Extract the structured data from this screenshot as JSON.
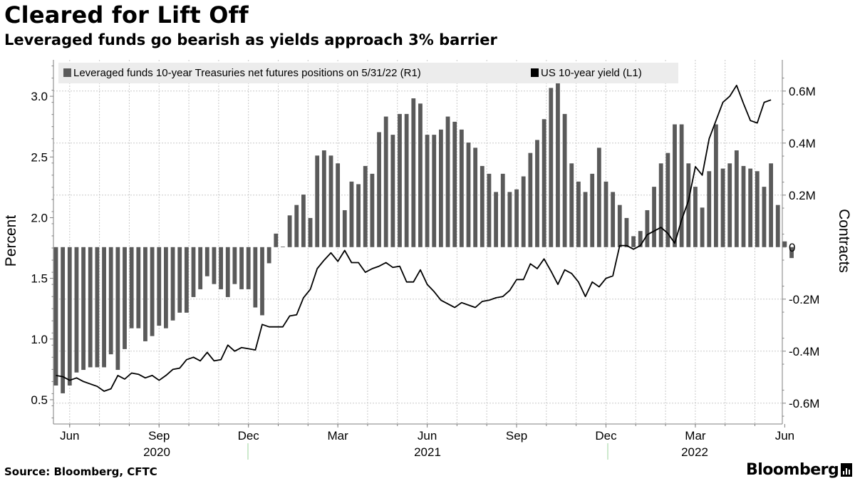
{
  "title": "Cleared for Lift Off",
  "subtitle": "Leveraged funds go bearish as yields approach 3% barrier",
  "source": "Source: Bloomberg, CFTC",
  "brand": "Bloomberg",
  "colors": {
    "bars": "#5a5a5a",
    "line": "#000000",
    "legend_bg": "#ececec",
    "grid": "#c8c8c8",
    "axis": "#7f7f7f"
  },
  "chart_data": {
    "type": "bar",
    "combo": "bars (right axis) + line (left axis)",
    "legend_position": "top-left",
    "grid": true,
    "x_tick_labels": [
      "Jun",
      "Sep",
      "Dec",
      "Mar",
      "Jun",
      "Sep",
      "Dec",
      "Mar",
      "Jun"
    ],
    "x_year_labels": [
      "2020",
      "2021",
      "2022"
    ],
    "left_axis": {
      "label": "Percent",
      "range": [
        0.3,
        3.3
      ],
      "ticks": [
        "0.5",
        "1.0",
        "1.5",
        "2.0",
        "2.5",
        "3.0"
      ]
    },
    "right_axis": {
      "label": "Contracts",
      "range": [
        -0.68,
        0.72
      ],
      "unit": "M",
      "ticks": [
        "-0.6M",
        "-0.4M",
        "-0.2M",
        "0",
        "0.2M",
        "0.4M",
        "0.6M"
      ]
    },
    "start_date": "2020-05-19",
    "interval_days": 7,
    "series": [
      {
        "name": "Leveraged funds 10-year Treasuries net futures positions on 5/31/22 (R1)",
        "type": "bar",
        "axis": "right",
        "values": [
          -0.532,
          -0.562,
          -0.532,
          -0.482,
          -0.472,
          -0.462,
          -0.462,
          -0.462,
          -0.412,
          -0.472,
          -0.392,
          -0.312,
          -0.312,
          -0.362,
          -0.342,
          -0.302,
          -0.312,
          -0.282,
          -0.252,
          -0.252,
          -0.192,
          -0.162,
          -0.112,
          -0.142,
          -0.162,
          -0.192,
          -0.142,
          -0.162,
          -0.162,
          -0.232,
          -0.262,
          -0.062,
          0.052,
          0.002,
          0.122,
          0.162,
          0.202,
          0.112,
          0.352,
          0.372,
          0.352,
          0.322,
          0.142,
          0.252,
          0.242,
          0.312,
          0.282,
          0.442,
          0.502,
          0.432,
          0.512,
          0.512,
          0.572,
          0.552,
          0.432,
          0.432,
          0.452,
          0.502,
          0.482,
          0.452,
          0.402,
          0.382,
          0.312,
          0.282,
          0.212,
          0.282,
          0.212,
          0.222,
          0.272,
          0.362,
          0.412,
          0.492,
          0.612,
          0.672,
          0.512,
          0.322,
          0.252,
          0.212,
          0.282,
          0.382,
          0.252,
          0.212,
          0.162,
          0.112,
          0.042,
          0.062,
          0.142,
          0.232,
          0.322,
          0.362,
          0.472,
          0.472,
          0.322,
          0.232,
          0.152,
          0.292,
          0.472,
          0.302,
          0.322,
          0.372,
          0.312,
          0.302,
          0.292,
          0.232,
          0.322,
          0.162,
          0.022,
          -0.042
        ]
      },
      {
        "name": "US 10-year yield (L1)",
        "type": "line",
        "axis": "left",
        "values": [
          0.7,
          0.69,
          0.66,
          0.68,
          0.65,
          0.63,
          0.61,
          0.57,
          0.59,
          0.7,
          0.67,
          0.72,
          0.71,
          0.68,
          0.7,
          0.66,
          0.7,
          0.75,
          0.76,
          0.83,
          0.85,
          0.82,
          0.89,
          0.82,
          0.83,
          0.95,
          0.9,
          0.93,
          0.92,
          0.91,
          1.12,
          1.1,
          1.1,
          1.1,
          1.19,
          1.2,
          1.34,
          1.41,
          1.58,
          1.65,
          1.71,
          1.64,
          1.73,
          1.63,
          1.63,
          1.55,
          1.58,
          1.6,
          1.63,
          1.59,
          1.6,
          1.47,
          1.47,
          1.57,
          1.45,
          1.39,
          1.32,
          1.29,
          1.26,
          1.3,
          1.28,
          1.26,
          1.31,
          1.32,
          1.34,
          1.35,
          1.4,
          1.49,
          1.49,
          1.62,
          1.58,
          1.66,
          1.56,
          1.45,
          1.57,
          1.54,
          1.47,
          1.35,
          1.47,
          1.43,
          1.5,
          1.52,
          1.77,
          1.77,
          1.74,
          1.77,
          1.86,
          1.89,
          1.92,
          1.87,
          1.79,
          1.98,
          2.14,
          2.42,
          2.35,
          2.65,
          2.8,
          2.95,
          3.0,
          3.09,
          2.94,
          2.8,
          2.78,
          2.95,
          2.97
        ]
      }
    ]
  }
}
